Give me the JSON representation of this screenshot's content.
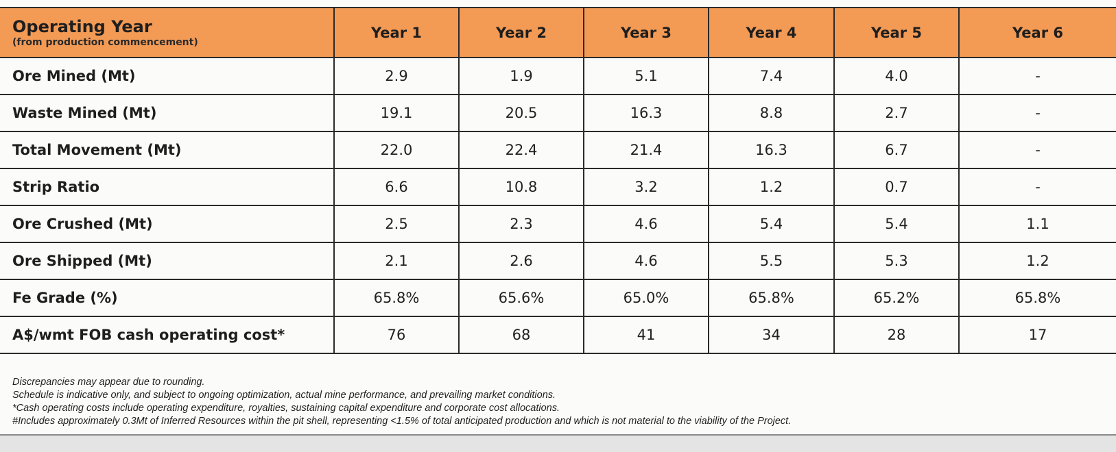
{
  "table": {
    "header": {
      "title": "Operating Year",
      "subtitle": "(from production commencement)",
      "years": [
        "Year 1",
        "Year 2",
        "Year 3",
        "Year 4",
        "Year 5",
        "Year 6"
      ]
    },
    "rows": [
      {
        "label": "Ore Mined (Mt)",
        "values": [
          "2.9",
          "1.9",
          "5.1",
          "7.4",
          "4.0",
          "-"
        ]
      },
      {
        "label": "Waste Mined (Mt)",
        "values": [
          "19.1",
          "20.5",
          "16.3",
          "8.8",
          "2.7",
          "-"
        ]
      },
      {
        "label": "Total Movement (Mt)",
        "values": [
          "22.0",
          "22.4",
          "21.4",
          "16.3",
          "6.7",
          "-"
        ]
      },
      {
        "label": "Strip Ratio",
        "values": [
          "6.6",
          "10.8",
          "3.2",
          "1.2",
          "0.7",
          "-"
        ]
      },
      {
        "label": "Ore Crushed (Mt)",
        "values": [
          "2.5",
          "2.3",
          "4.6",
          "5.4",
          "5.4",
          "1.1"
        ]
      },
      {
        "label": "Ore Shipped (Mt)",
        "values": [
          "2.1",
          "2.6",
          "4.6",
          "5.5",
          "5.3",
          "1.2"
        ]
      },
      {
        "label": "Fe Grade (%)",
        "values": [
          "65.8%",
          "65.6%",
          "65.0%",
          "65.8%",
          "65.2%",
          "65.8%"
        ]
      },
      {
        "label": "A$/wmt FOB cash operating cost*",
        "values": [
          "76",
          "68",
          "41",
          "34",
          "28",
          "17"
        ]
      }
    ]
  },
  "notes": [
    "Discrepancies may appear due to rounding.",
    "Schedule is indicative only, and subject to ongoing optimization, actual mine performance, and prevailing market conditions.",
    "*Cash operating costs include operating expenditure, royalties, sustaining capital expenditure and corporate cost allocations.",
    "#Includes approximately 0.3Mt of Inferred Resources within the pit shell, representing <1.5% of total anticipated production and which is not material to the viability of the Project."
  ],
  "colors": {
    "header_bg": "#f39a55",
    "border": "#2a2a2a"
  }
}
